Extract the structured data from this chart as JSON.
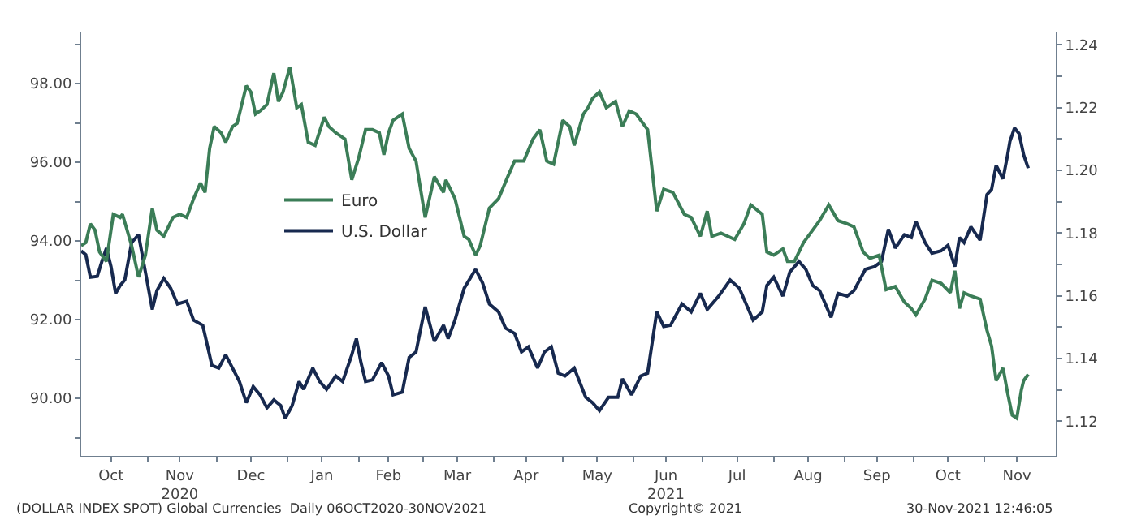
{
  "chart_data": {
    "type": "line",
    "xlim": [
      "2020-10-03",
      "2021-12-02"
    ],
    "xticks": [
      {
        "value": "2020-10-16",
        "label": "Oct"
      },
      {
        "value": "2020-11-01",
        "label": null
      },
      {
        "value": "2020-11-15",
        "label": "Nov\n2020"
      },
      {
        "value": "2020-12-01",
        "label": null
      },
      {
        "value": "2020-12-16",
        "label": "Dec"
      },
      {
        "value": "2021-01-01",
        "label": null
      },
      {
        "value": "2021-01-16",
        "label": "Jan"
      },
      {
        "value": "2021-02-01",
        "label": null
      },
      {
        "value": "2021-02-14",
        "label": "Feb"
      },
      {
        "value": "2021-03-01",
        "label": null
      },
      {
        "value": "2021-03-16",
        "label": "Mar"
      },
      {
        "value": "2021-04-01",
        "label": null
      },
      {
        "value": "2021-04-15",
        "label": "Apr"
      },
      {
        "value": "2021-05-01",
        "label": null
      },
      {
        "value": "2021-05-16",
        "label": "May"
      },
      {
        "value": "2021-06-01",
        "label": null
      },
      {
        "value": "2021-06-15",
        "label": "Jun\n2021"
      },
      {
        "value": "2021-07-01",
        "label": null
      },
      {
        "value": "2021-07-16",
        "label": "Jul"
      },
      {
        "value": "2021-08-01",
        "label": null
      },
      {
        "value": "2021-08-16",
        "label": "Aug"
      },
      {
        "value": "2021-09-01",
        "label": null
      },
      {
        "value": "2021-09-15",
        "label": "Sep"
      },
      {
        "value": "2021-10-01",
        "label": null
      },
      {
        "value": "2021-10-16",
        "label": "Oct"
      },
      {
        "value": "2021-11-01",
        "label": null
      },
      {
        "value": "2021-11-15",
        "label": "Nov"
      }
    ],
    "ylim": [
      88.54,
      99.3
    ],
    "yticks": [
      {
        "value": 89,
        "label": null
      },
      {
        "value": 90,
        "label": "90.00"
      },
      {
        "value": 91,
        "label": null
      },
      {
        "value": 92,
        "label": "92.00"
      },
      {
        "value": 93,
        "label": null
      },
      {
        "value": 94,
        "label": "94.00"
      },
      {
        "value": 95,
        "label": null
      },
      {
        "value": 96,
        "label": "96.00"
      },
      {
        "value": 97,
        "label": null
      },
      {
        "value": 98,
        "label": "98.00"
      },
      {
        "value": 99,
        "label": null
      }
    ],
    "y2lim": [
      1.109,
      1.244
    ],
    "y2ticks": [
      1.12,
      {
        "value": 1.13,
        "label": null
      },
      1.14,
      {
        "value": 1.15,
        "label": null
      },
      1.16,
      {
        "value": 1.17,
        "label": null
      },
      1.18,
      {
        "value": 1.19,
        "label": null
      },
      {
        "value": 1.2,
        "label": "1.20"
      },
      {
        "value": 1.21,
        "label": null
      },
      1.22,
      {
        "value": 1.23,
        "label": null
      },
      1.24
    ],
    "legend": "left",
    "series": [
      {
        "name": "Euro",
        "color": "#3b7d57",
        "axis": "y2",
        "x": [
          "2020-10-03",
          "2020-10-05",
          "2020-10-07",
          "2020-10-09",
          "2020-10-11",
          "2020-10-14",
          "2020-10-17",
          "2020-10-20",
          "2020-10-21",
          "2020-10-25",
          "2020-10-28",
          "2020-10-31",
          "2020-11-03",
          "2020-11-05",
          "2020-11-08",
          "2020-11-12",
          "2020-11-15",
          "2020-11-18",
          "2020-11-21",
          "2020-11-24",
          "2020-11-26",
          "2020-11-28",
          "2020-11-30",
          "2020-12-03",
          "2020-12-05",
          "2020-12-08",
          "2020-12-10",
          "2020-12-14",
          "2020-12-16",
          "2020-12-18",
          "2020-12-20",
          "2020-12-23",
          "2020-12-26",
          "2020-12-28",
          "2020-12-30",
          "2021-01-02",
          "2021-01-05",
          "2021-01-07",
          "2021-01-10",
          "2021-01-13",
          "2021-01-17",
          "2021-01-19",
          "2021-01-22",
          "2021-01-26",
          "2021-01-29",
          "2021-02-01",
          "2021-02-04",
          "2021-02-07",
          "2021-02-10",
          "2021-02-12",
          "2021-02-14",
          "2021-02-16",
          "2021-02-20",
          "2021-02-23",
          "2021-02-26",
          "2021-03-02",
          "2021-03-06",
          "2021-03-10",
          "2021-03-11",
          "2021-03-15",
          "2021-03-19",
          "2021-03-21",
          "2021-03-24",
          "2021-03-26",
          "2021-03-30",
          "2021-04-03",
          "2021-04-07",
          "2021-04-10",
          "2021-04-14",
          "2021-04-18",
          "2021-04-21",
          "2021-04-24",
          "2021-04-27",
          "2021-05-01",
          "2021-05-04",
          "2021-05-06",
          "2021-05-10",
          "2021-05-12",
          "2021-05-14",
          "2021-05-17",
          "2021-05-20",
          "2021-05-24",
          "2021-05-27",
          "2021-05-30",
          "2021-06-02",
          "2021-06-07",
          "2021-06-11",
          "2021-06-14",
          "2021-06-18",
          "2021-06-23",
          "2021-06-26",
          "2021-06-30",
          "2021-07-03",
          "2021-07-05",
          "2021-07-09",
          "2021-07-15",
          "2021-07-19",
          "2021-07-22",
          "2021-07-27",
          "2021-07-29",
          "2021-08-01",
          "2021-08-05",
          "2021-08-07",
          "2021-08-10",
          "2021-08-14",
          "2021-08-18",
          "2021-08-21",
          "2021-08-25",
          "2021-08-29",
          "2021-09-02",
          "2021-09-05",
          "2021-09-09",
          "2021-09-12",
          "2021-09-16",
          "2021-09-19",
          "2021-09-23",
          "2021-09-27",
          "2021-09-30",
          "2021-10-02",
          "2021-10-06",
          "2021-10-09",
          "2021-10-13",
          "2021-10-17",
          "2021-10-19",
          "2021-10-21",
          "2021-10-23",
          "2021-10-26",
          "2021-10-30",
          "2021-11-02",
          "2021-11-04",
          "2021-11-06",
          "2021-11-09",
          "2021-11-11",
          "2021-11-13",
          "2021-11-15",
          "2021-11-17",
          "2021-11-18",
          "2021-11-20"
        ],
        "values": [
          1.176,
          1.177,
          1.183,
          1.181,
          1.174,
          1.171,
          1.186,
          1.185,
          1.186,
          1.176,
          1.166,
          1.173,
          1.188,
          1.181,
          1.179,
          1.185,
          1.186,
          1.185,
          1.191,
          1.196,
          1.193,
          1.207,
          1.214,
          1.212,
          1.209,
          1.214,
          1.215,
          1.227,
          1.225,
          1.218,
          1.219,
          1.221,
          1.231,
          1.222,
          1.225,
          1.233,
          1.22,
          1.221,
          1.209,
          1.208,
          1.217,
          1.214,
          1.212,
          1.21,
          1.197,
          1.204,
          1.213,
          1.213,
          1.212,
          1.205,
          1.212,
          1.216,
          1.218,
          1.207,
          1.203,
          1.185,
          1.198,
          1.193,
          1.197,
          1.191,
          1.179,
          1.178,
          1.173,
          1.176,
          1.188,
          1.191,
          1.198,
          1.203,
          1.203,
          1.21,
          1.213,
          1.203,
          1.202,
          1.216,
          1.214,
          1.208,
          1.218,
          1.22,
          1.223,
          1.225,
          1.22,
          1.222,
          1.214,
          1.219,
          1.218,
          1.213,
          1.187,
          1.194,
          1.193,
          1.186,
          1.185,
          1.179,
          1.187,
          1.179,
          1.18,
          1.178,
          1.183,
          1.189,
          1.186,
          1.174,
          1.173,
          1.175,
          1.171,
          1.171,
          1.177,
          1.181,
          1.184,
          1.189,
          1.184,
          1.183,
          1.182,
          1.174,
          1.172,
          1.173,
          1.162,
          1.163,
          1.158,
          1.156,
          1.154,
          1.159,
          1.165,
          1.164,
          1.161,
          1.168,
          1.156,
          1.161,
          1.16,
          1.159,
          1.149,
          1.144,
          1.133,
          1.137,
          1.129,
          1.122,
          1.121,
          1.13,
          1.133,
          1.135
        ]
      },
      {
        "name": "U.S. Dollar",
        "color": "#17294f",
        "x": [
          "2020-10-03",
          "2020-10-05",
          "2020-10-07",
          "2020-10-10",
          "2020-10-12",
          "2020-10-14",
          "2020-10-16",
          "2020-10-18",
          "2020-10-20",
          "2020-10-22",
          "2020-10-25",
          "2020-10-28",
          "2020-10-31",
          "2020-11-03",
          "2020-11-05",
          "2020-11-08",
          "2020-11-11",
          "2020-11-14",
          "2020-11-18",
          "2020-11-21",
          "2020-11-25",
          "2020-11-29",
          "2020-12-02",
          "2020-12-05",
          "2020-12-08",
          "2020-12-11",
          "2020-12-14",
          "2020-12-17",
          "2020-12-20",
          "2020-12-23",
          "2020-12-26",
          "2020-12-29",
          "2020-12-31",
          "2021-01-03",
          "2021-01-06",
          "2021-01-08",
          "2021-01-12",
          "2021-01-15",
          "2021-01-18",
          "2021-01-22",
          "2021-01-25",
          "2021-01-29",
          "2021-01-31",
          "2021-02-02",
          "2021-02-04",
          "2021-02-07",
          "2021-02-11",
          "2021-02-14",
          "2021-02-16",
          "2021-02-20",
          "2021-02-23",
          "2021-02-26",
          "2021-03-02",
          "2021-03-06",
          "2021-03-10",
          "2021-03-12",
          "2021-03-15",
          "2021-03-19",
          "2021-03-24",
          "2021-03-27",
          "2021-03-30",
          "2021-04-03",
          "2021-04-06",
          "2021-04-10",
          "2021-04-13",
          "2021-04-16",
          "2021-04-20",
          "2021-04-23",
          "2021-04-26",
          "2021-04-29",
          "2021-05-02",
          "2021-05-06",
          "2021-05-11",
          "2021-05-14",
          "2021-05-17",
          "2021-05-21",
          "2021-05-25",
          "2021-05-27",
          "2021-05-31",
          "2021-06-04",
          "2021-06-07",
          "2021-06-11",
          "2021-06-14",
          "2021-06-17",
          "2021-06-22",
          "2021-06-26",
          "2021-06-30",
          "2021-07-03",
          "2021-07-08",
          "2021-07-13",
          "2021-07-17",
          "2021-07-21",
          "2021-07-23",
          "2021-07-27",
          "2021-07-29",
          "2021-08-01",
          "2021-08-05",
          "2021-08-08",
          "2021-08-12",
          "2021-08-15",
          "2021-08-18",
          "2021-08-21",
          "2021-08-26",
          "2021-08-29",
          "2021-09-02",
          "2021-09-05",
          "2021-09-10",
          "2021-09-14",
          "2021-09-17",
          "2021-09-20",
          "2021-09-23",
          "2021-09-27",
          "2021-09-30",
          "2021-10-02",
          "2021-10-06",
          "2021-10-09",
          "2021-10-13",
          "2021-10-16",
          "2021-10-19",
          "2021-10-21",
          "2021-10-23",
          "2021-10-26",
          "2021-10-30",
          "2021-11-02",
          "2021-11-04",
          "2021-11-06",
          "2021-11-09",
          "2021-11-11",
          "2021-11-12",
          "2021-11-14",
          "2021-11-16",
          "2021-11-18",
          "2021-11-20"
        ],
        "values": [
          93.75,
          93.65,
          93.08,
          93.1,
          93.48,
          93.82,
          93.35,
          92.67,
          92.87,
          93.01,
          93.96,
          94.16,
          93.21,
          92.26,
          92.74,
          93.05,
          92.8,
          92.4,
          92.47,
          91.99,
          91.86,
          90.84,
          90.77,
          91.11,
          90.77,
          90.43,
          89.89,
          90.3,
          90.09,
          89.76,
          89.96,
          89.82,
          89.49,
          89.82,
          90.43,
          90.23,
          90.77,
          90.43,
          90.23,
          90.57,
          90.43,
          91.11,
          91.52,
          90.91,
          90.43,
          90.47,
          90.91,
          90.57,
          90.09,
          90.16,
          91.04,
          91.18,
          92.33,
          91.45,
          91.86,
          91.52,
          91.99,
          92.8,
          93.28,
          92.94,
          92.4,
          92.2,
          91.79,
          91.65,
          91.18,
          91.31,
          90.77,
          91.18,
          91.31,
          90.64,
          90.57,
          90.77,
          90.03,
          89.89,
          89.69,
          90.03,
          90.03,
          90.5,
          90.09,
          90.57,
          90.64,
          92.2,
          91.83,
          91.86,
          92.4,
          92.2,
          92.67,
          92.26,
          92.6,
          93.01,
          92.8,
          92.26,
          91.99,
          92.2,
          92.87,
          93.08,
          92.6,
          93.21,
          93.48,
          93.28,
          92.87,
          92.74,
          92.06,
          92.67,
          92.6,
          92.74,
          93.28,
          93.35,
          93.48,
          94.3,
          93.82,
          94.16,
          94.09,
          94.5,
          93.96,
          93.69,
          93.75,
          93.89,
          93.35,
          94.09,
          93.96,
          94.36,
          94.02,
          95.18,
          95.31,
          95.92,
          95.58,
          96.19,
          96.53,
          96.87,
          96.73,
          96.19,
          95.85
        ]
      }
    ],
    "annotations": [
      "(DOLLAR INDEX SPOT) Global Currencies  Daily 06OCT2020-30NOV2021",
      "Copyright© 2021",
      "30-Nov-2021 12:46:05"
    ]
  }
}
